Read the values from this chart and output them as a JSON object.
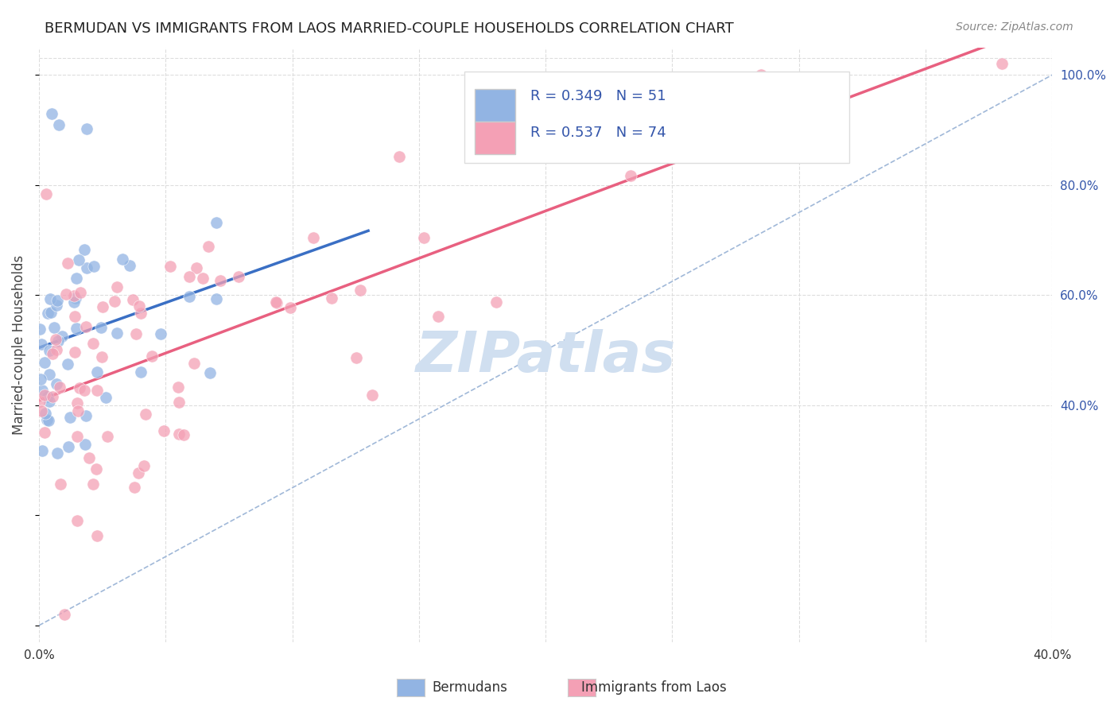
{
  "title": "BERMUDAN VS IMMIGRANTS FROM LAOS MARRIED-COUPLE HOUSEHOLDS CORRELATION CHART",
  "source": "Source: ZipAtlas.com",
  "ylabel": "Married-couple Households",
  "xmin": 0.0,
  "xmax": 0.4,
  "ymin": 0.0,
  "ymax": 1.05,
  "xticks": [
    0.0,
    0.05,
    0.1,
    0.15,
    0.2,
    0.25,
    0.3,
    0.35,
    0.4
  ],
  "yticks": [
    0.4,
    0.6,
    0.8,
    1.0
  ],
  "ytick_labels": [
    "40.0%",
    "60.0%",
    "80.0%",
    "100.0%"
  ],
  "xtick_labels": [
    "0.0%",
    "",
    "",
    "",
    "",
    "",
    "",
    "",
    "40.0%"
  ],
  "bermudans_R": 0.349,
  "bermudans_N": 51,
  "laos_R": 0.537,
  "laos_N": 74,
  "bermudans_color": "#92b4e3",
  "laos_color": "#f4a0b5",
  "bermudans_line_color": "#3a6fc4",
  "laos_line_color": "#e86080",
  "diagonal_color": "#a0b8d8",
  "background_color": "#ffffff",
  "grid_color": "#dddddd",
  "title_color": "#222222",
  "source_color": "#888888",
  "legend_text_color": "#3355aa",
  "watermark_color": "#d0dff0",
  "seed": 42
}
